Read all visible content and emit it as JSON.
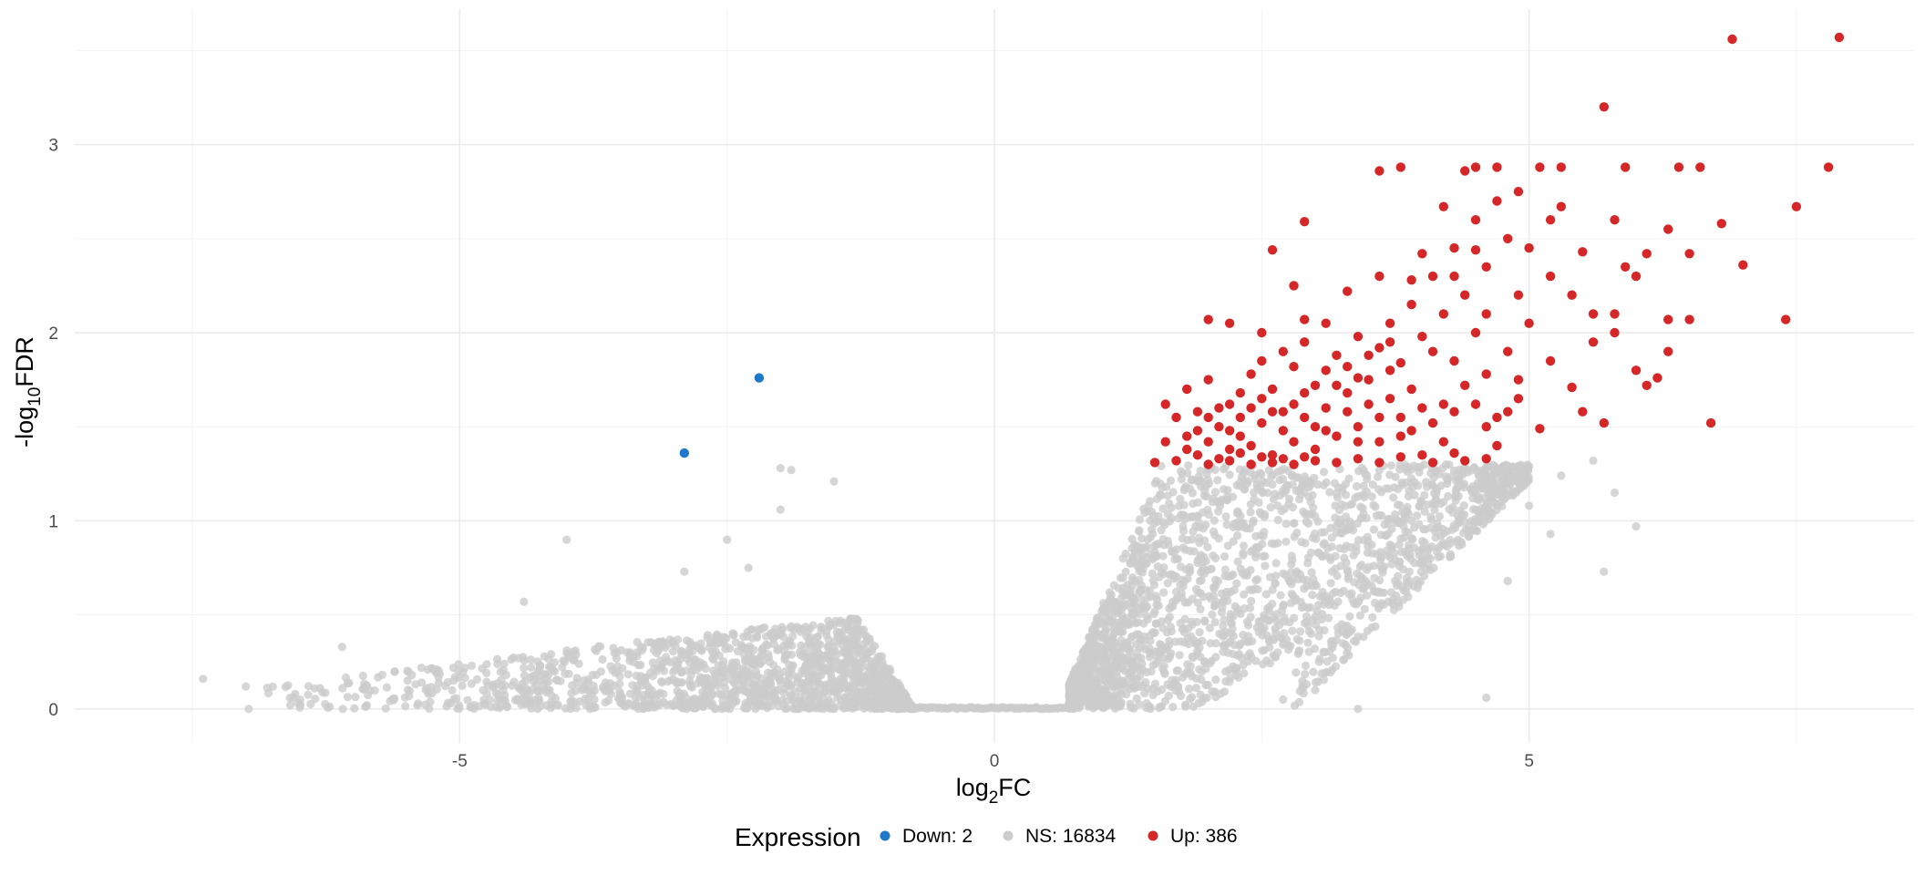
{
  "chart_data": {
    "type": "scatter",
    "title": "",
    "xlabel_main": "log",
    "xlabel_sub": "2",
    "xlabel_tail": "FC",
    "ylabel_main": "-log",
    "ylabel_sub": "10",
    "ylabel_tail": "FDR",
    "xlim": [
      -8.6,
      8.6
    ],
    "ylim": [
      -0.18,
      3.72
    ],
    "x_ticks": [
      -5,
      0,
      5
    ],
    "x_tick_labels": [
      "-5",
      "0",
      "5"
    ],
    "y_ticks": [
      0,
      1,
      2,
      3
    ],
    "y_tick_labels": [
      "0",
      "1",
      "2",
      "3"
    ],
    "grid": true,
    "legend": {
      "position": "bottom",
      "title": "Expression",
      "entries": [
        {
          "key": "Down",
          "label": "Down: 2",
          "color": "#1f78c8"
        },
        {
          "key": "NS",
          "label": "NS: 16834",
          "color": "#cccccc"
        },
        {
          "key": "Up",
          "label": "Up: 386",
          "color": "#d62728"
        }
      ]
    },
    "series": [
      {
        "name": "Down: 2",
        "color": "#1f78c8",
        "points": [
          [
            -2.2,
            1.76
          ],
          [
            -2.9,
            1.36
          ]
        ]
      },
      {
        "name": "Up: 386",
        "color": "#d62728",
        "points": [
          [
            6.9,
            3.56
          ],
          [
            7.9,
            3.57
          ],
          [
            5.7,
            3.2
          ],
          [
            7.8,
            2.88
          ],
          [
            4.7,
            2.88
          ],
          [
            4.5,
            2.88
          ],
          [
            5.3,
            2.88
          ],
          [
            5.9,
            2.88
          ],
          [
            6.4,
            2.88
          ],
          [
            6.6,
            2.88
          ],
          [
            3.6,
            2.86
          ],
          [
            3.8,
            2.88
          ],
          [
            4.4,
            2.86
          ],
          [
            5.1,
            2.88
          ],
          [
            2.9,
            2.59
          ],
          [
            7.5,
            2.67
          ],
          [
            6.8,
            2.58
          ],
          [
            7.0,
            2.36
          ],
          [
            7.4,
            2.07
          ],
          [
            6.7,
            1.52
          ],
          [
            5.1,
            1.49
          ],
          [
            5.4,
            1.71
          ],
          [
            5.7,
            1.52
          ],
          [
            6.2,
            1.76
          ],
          [
            6.3,
            1.9
          ],
          [
            6.5,
            2.07
          ],
          [
            5.8,
            2.1
          ],
          [
            5.5,
            1.58
          ],
          [
            4.2,
            2.67
          ],
          [
            4.5,
            2.44
          ],
          [
            4.0,
            2.42
          ],
          [
            3.9,
            2.28
          ],
          [
            3.6,
            2.3
          ],
          [
            3.3,
            2.22
          ],
          [
            2.6,
            2.44
          ],
          [
            2.8,
            2.25
          ],
          [
            2.0,
            2.07
          ],
          [
            2.2,
            2.05
          ],
          [
            2.5,
            2.0
          ],
          [
            2.9,
            2.07
          ],
          [
            3.1,
            2.05
          ],
          [
            3.4,
            1.98
          ],
          [
            3.7,
            1.95
          ],
          [
            4.3,
            2.3
          ],
          [
            4.6,
            2.1
          ],
          [
            4.9,
            2.2
          ],
          [
            5.2,
            2.3
          ],
          [
            5.5,
            2.43
          ],
          [
            5.9,
            2.35
          ],
          [
            6.1,
            2.42
          ],
          [
            6.3,
            2.55
          ],
          [
            6.5,
            2.42
          ],
          [
            1.6,
            1.62
          ],
          [
            1.7,
            1.55
          ],
          [
            1.8,
            1.45
          ],
          [
            1.9,
            1.48
          ],
          [
            2.0,
            1.42
          ],
          [
            2.1,
            1.5
          ],
          [
            2.2,
            1.38
          ],
          [
            2.3,
            1.45
          ],
          [
            2.4,
            1.4
          ],
          [
            2.5,
            1.52
          ],
          [
            2.6,
            1.35
          ],
          [
            2.7,
            1.48
          ],
          [
            2.8,
            1.42
          ],
          [
            2.9,
            1.55
          ],
          [
            3.0,
            1.38
          ],
          [
            3.1,
            1.6
          ],
          [
            3.2,
            1.45
          ],
          [
            3.3,
            1.68
          ],
          [
            3.4,
            1.5
          ],
          [
            3.5,
            1.75
          ],
          [
            3.6,
            1.42
          ],
          [
            3.7,
            1.8
          ],
          [
            3.8,
            1.55
          ],
          [
            3.9,
            1.7
          ],
          [
            4.0,
            1.35
          ],
          [
            4.1,
            1.9
          ],
          [
            4.2,
            1.62
          ],
          [
            4.3,
            1.85
          ],
          [
            4.4,
            1.32
          ],
          [
            4.5,
            2.0
          ],
          [
            4.6,
            1.78
          ],
          [
            4.7,
            1.4
          ],
          [
            4.8,
            1.9
          ],
          [
            4.9,
            1.65
          ],
          [
            5.0,
            2.05
          ],
          [
            5.2,
            1.85
          ],
          [
            5.3,
            2.67
          ],
          [
            5.6,
            1.95
          ],
          [
            5.8,
            2.0
          ],
          [
            6.0,
            1.8
          ],
          [
            6.1,
            1.72
          ],
          [
            6.3,
            2.07
          ],
          [
            1.5,
            1.31
          ],
          [
            1.7,
            1.32
          ],
          [
            1.9,
            1.35
          ],
          [
            2.0,
            1.3
          ],
          [
            2.1,
            1.33
          ],
          [
            2.2,
            1.32
          ],
          [
            2.3,
            1.36
          ],
          [
            2.4,
            1.3
          ],
          [
            2.5,
            1.34
          ],
          [
            2.6,
            1.31
          ],
          [
            2.7,
            1.33
          ],
          [
            2.8,
            1.3
          ],
          [
            2.9,
            1.34
          ],
          [
            3.0,
            1.32
          ],
          [
            3.2,
            1.31
          ],
          [
            3.4,
            1.33
          ],
          [
            3.6,
            1.31
          ],
          [
            3.8,
            1.34
          ],
          [
            4.1,
            1.31
          ],
          [
            4.3,
            1.36
          ],
          [
            4.6,
            1.33
          ],
          [
            1.8,
            1.7
          ],
          [
            2.0,
            1.75
          ],
          [
            2.2,
            1.62
          ],
          [
            2.4,
            1.78
          ],
          [
            2.6,
            1.7
          ],
          [
            2.8,
            1.82
          ],
          [
            3.0,
            1.72
          ],
          [
            3.2,
            1.88
          ],
          [
            3.4,
            1.76
          ],
          [
            3.6,
            1.92
          ],
          [
            3.8,
            1.84
          ],
          [
            4.0,
            1.98
          ],
          [
            4.2,
            2.1
          ],
          [
            4.4,
            2.2
          ],
          [
            4.6,
            2.35
          ],
          [
            4.8,
            2.5
          ],
          [
            5.0,
            2.45
          ],
          [
            5.2,
            2.6
          ],
          [
            5.4,
            2.2
          ],
          [
            5.6,
            2.1
          ],
          [
            5.8,
            2.6
          ],
          [
            6.0,
            2.3
          ],
          [
            2.3,
            1.55
          ],
          [
            2.5,
            1.65
          ],
          [
            2.7,
            1.58
          ],
          [
            2.9,
            1.68
          ],
          [
            3.1,
            1.48
          ],
          [
            3.3,
            1.58
          ],
          [
            3.5,
            1.62
          ],
          [
            3.7,
            1.65
          ],
          [
            3.9,
            1.48
          ],
          [
            4.1,
            1.52
          ],
          [
            4.3,
            1.58
          ],
          [
            4.5,
            1.62
          ],
          [
            4.7,
            1.55
          ],
          [
            4.9,
            1.75
          ],
          [
            1.9,
            1.58
          ],
          [
            2.1,
            1.6
          ],
          [
            2.3,
            1.68
          ],
          [
            2.5,
            1.85
          ],
          [
            2.7,
            1.9
          ],
          [
            2.9,
            1.95
          ],
          [
            3.1,
            1.8
          ],
          [
            3.3,
            1.82
          ],
          [
            3.5,
            1.88
          ],
          [
            3.7,
            2.05
          ],
          [
            3.9,
            2.15
          ],
          [
            4.1,
            2.3
          ],
          [
            4.3,
            2.45
          ],
          [
            4.5,
            2.6
          ],
          [
            4.7,
            2.7
          ],
          [
            4.9,
            2.75
          ],
          [
            1.6,
            1.42
          ],
          [
            1.8,
            1.38
          ],
          [
            2.0,
            1.55
          ],
          [
            2.2,
            1.48
          ],
          [
            2.4,
            1.6
          ],
          [
            2.6,
            1.58
          ],
          [
            2.8,
            1.62
          ],
          [
            3.0,
            1.5
          ],
          [
            3.2,
            1.72
          ],
          [
            3.4,
            1.42
          ],
          [
            3.6,
            1.55
          ],
          [
            3.8,
            1.45
          ],
          [
            4.0,
            1.6
          ],
          [
            4.2,
            1.42
          ],
          [
            4.4,
            1.72
          ],
          [
            4.6,
            1.5
          ],
          [
            4.8,
            1.58
          ]
        ]
      }
    ],
    "ns_cloud": {
      "name": "NS: 16834",
      "color": "#cccccc",
      "baseline_x": [
        -0.75,
        0.7
      ],
      "left_arm": {
        "x_min": -7.5,
        "x_max": -0.75,
        "y_max": 0.6
      },
      "right_arm": {
        "x_min": 0.7,
        "x_max": 5.0,
        "y_max": 1.3
      },
      "outliers": [
        [
          -4.0,
          0.9
        ],
        [
          -2.5,
          0.9
        ],
        [
          -2.0,
          1.28
        ],
        [
          -1.9,
          1.27
        ],
        [
          -1.5,
          1.21
        ],
        [
          -2.0,
          1.06
        ],
        [
          -4.4,
          0.57
        ],
        [
          -6.1,
          0.33
        ],
        [
          -2.3,
          0.75
        ],
        [
          -2.9,
          0.73
        ],
        [
          -7.4,
          0.16
        ],
        [
          -7.0,
          0.12
        ],
        [
          5.3,
          1.24
        ],
        [
          5.6,
          1.32
        ],
        [
          5.8,
          1.15
        ],
        [
          5.0,
          1.08
        ],
        [
          4.5,
          0.95
        ],
        [
          5.2,
          0.93
        ],
        [
          5.7,
          0.73
        ],
        [
          6.0,
          0.97
        ],
        [
          4.8,
          0.68
        ],
        [
          4.6,
          0.06
        ],
        [
          3.4,
          0.0
        ],
        [
          4.0,
          0.85
        ],
        [
          4.2,
          1.1
        ],
        [
          3.9,
          1.0
        ],
        [
          3.6,
          0.55
        ],
        [
          3.3,
          0.4
        ],
        [
          3.0,
          0.1
        ],
        [
          2.7,
          0.05
        ]
      ]
    }
  }
}
